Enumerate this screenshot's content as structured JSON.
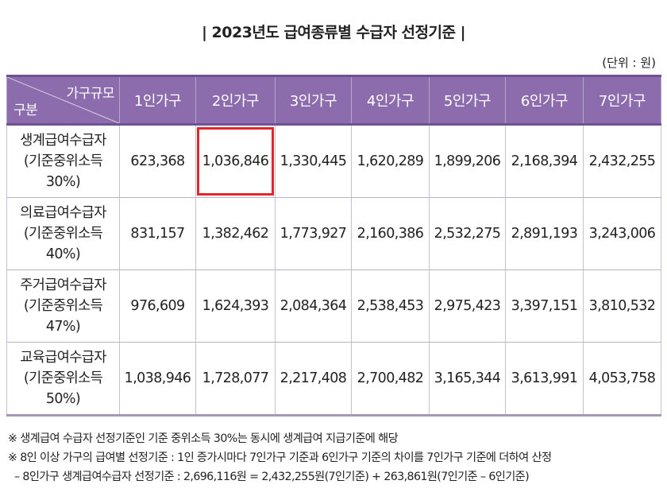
{
  "title": "| 2023년도 급여종류별 수급자 선정기준 |",
  "unit": "(단위 : 원)",
  "table": {
    "corner_top": "가구규모",
    "corner_bottom": "구분",
    "columns": [
      "1인가구",
      "2인가구",
      "3인가구",
      "4인가구",
      "5인가구",
      "6인가구",
      "7인가구"
    ],
    "rows": [
      {
        "label": [
          "생계급여수급자",
          "(기준중위소득",
          "30%)"
        ],
        "values": [
          "623,368",
          "1,036,846",
          "1,330,445",
          "1,620,289",
          "1,899,206",
          "2,168,394",
          "2,432,255"
        ]
      },
      {
        "label": [
          "의료급여수급자",
          "(기준중위소득",
          "40%)"
        ],
        "values": [
          "831,157",
          "1,382,462",
          "1,773,927",
          "2,160,386",
          "2,532,275",
          "2,891,193",
          "3,243,006"
        ]
      },
      {
        "label": [
          "주거급여수급자",
          "(기준중위소득",
          "47%)"
        ],
        "values": [
          "976,609",
          "1,624,393",
          "2,084,364",
          "2,538,453",
          "2,975,423",
          "3,397,151",
          "3,810,532"
        ]
      },
      {
        "label": [
          "교육급여수급자",
          "(기준중위소득",
          "50%)"
        ],
        "values": [
          "1,038,946",
          "1,728,077",
          "2,217,408",
          "2,700,482",
          "3,165,344",
          "3,613,991",
          "4,053,758"
        ]
      }
    ]
  },
  "notes": [
    "※ 생계급여 수급자 선정기준인 기준 중위소득 30%는 동시에 생계급여 지급기준에 해당",
    "※ 8인 이상 가구의 급여별 선정기준 : 1인 증가시마다 7인가구 기준과 6인가구 기준의 차이를 7인가구 기준에 더하여 산정",
    "– 8인가구 생계급여수급자 선정기준 : 2,696,116원 = 2,432,255원(7인기준) + 263,861원(7인기준 – 6인기준)"
  ],
  "colors": {
    "header_bg": "#8c6cac",
    "highlight_border": "#e3262b"
  }
}
